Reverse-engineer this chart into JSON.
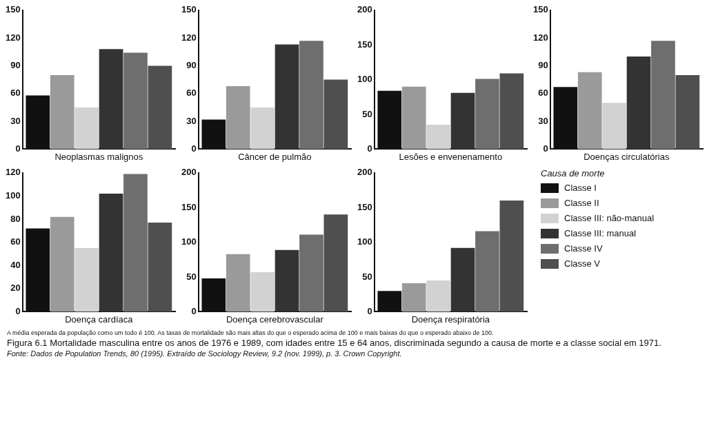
{
  "chart_data": [
    {
      "type": "bar",
      "categories": [
        null
      ],
      "xlabel": "Neoplasmas malignos",
      "ylim": [
        0,
        150
      ],
      "yticks": [
        0,
        30,
        60,
        90,
        120,
        150
      ],
      "tick_labels": "y",
      "grid": false,
      "legend": false,
      "series": [
        {
          "color": "#111111",
          "values": [
            58
          ]
        },
        {
          "color": "#9a9a9a",
          "values": [
            80
          ]
        },
        {
          "color": "#d2d2d2",
          "values": [
            45
          ]
        },
        {
          "color": "#333333",
          "values": [
            108
          ]
        },
        {
          "color": "#6e6e6e",
          "values": [
            104
          ]
        },
        {
          "color": "#4f4f4f",
          "values": [
            90
          ]
        }
      ]
    },
    {
      "type": "bar",
      "categories": [
        null
      ],
      "xlabel": "Câncer de pulmão",
      "ylim": [
        0,
        150
      ],
      "yticks": [
        0,
        30,
        60,
        90,
        120,
        150
      ],
      "tick_labels": "y",
      "grid": false,
      "legend": false,
      "series": [
        {
          "color": "#111111",
          "values": [
            32
          ]
        },
        {
          "color": "#9a9a9a",
          "values": [
            68
          ]
        },
        {
          "color": "#d2d2d2",
          "values": [
            45
          ]
        },
        {
          "color": "#333333",
          "values": [
            113
          ]
        },
        {
          "color": "#6e6e6e",
          "values": [
            117
          ]
        },
        {
          "color": "#4f4f4f",
          "values": [
            75
          ]
        }
      ]
    },
    {
      "type": "bar",
      "categories": [
        null
      ],
      "xlabel": "Lesões e envenenamento",
      "ylim": [
        0,
        200
      ],
      "yticks": [
        0,
        50,
        100,
        150,
        200
      ],
      "tick_labels": "y",
      "grid": false,
      "legend": false,
      "series": [
        {
          "color": "#111111",
          "values": [
            84
          ]
        },
        {
          "color": "#9a9a9a",
          "values": [
            90
          ]
        },
        {
          "color": "#d2d2d2",
          "values": [
            35
          ]
        },
        {
          "color": "#333333",
          "values": [
            81
          ]
        },
        {
          "color": "#6e6e6e",
          "values": [
            101
          ]
        },
        {
          "color": "#4f4f4f",
          "values": [
            109
          ]
        }
      ]
    },
    {
      "type": "bar",
      "categories": [
        null
      ],
      "xlabel": "Doenças circulatórias",
      "ylim": [
        0,
        150
      ],
      "yticks": [
        0,
        30,
        60,
        90,
        120,
        150
      ],
      "tick_labels": "y",
      "grid": false,
      "legend": false,
      "series": [
        {
          "color": "#111111",
          "values": [
            67
          ]
        },
        {
          "color": "#9a9a9a",
          "values": [
            83
          ]
        },
        {
          "color": "#d2d2d2",
          "values": [
            50
          ]
        },
        {
          "color": "#333333",
          "values": [
            100
          ]
        },
        {
          "color": "#6e6e6e",
          "values": [
            117
          ]
        },
        {
          "color": "#4f4f4f",
          "values": [
            80
          ]
        }
      ]
    },
    {
      "type": "bar",
      "categories": [
        null
      ],
      "xlabel": "Doença cardíaca",
      "ylim": [
        0,
        120
      ],
      "yticks": [
        0,
        20,
        40,
        60,
        80,
        100,
        120
      ],
      "tick_labels": "y",
      "grid": false,
      "legend": false,
      "series": [
        {
          "color": "#111111",
          "values": [
            72
          ]
        },
        {
          "color": "#9a9a9a",
          "values": [
            82
          ]
        },
        {
          "color": "#d2d2d2",
          "values": [
            55
          ]
        },
        {
          "color": "#333333",
          "values": [
            102
          ]
        },
        {
          "color": "#6e6e6e",
          "values": [
            119
          ]
        },
        {
          "color": "#4f4f4f",
          "values": [
            77
          ]
        }
      ]
    },
    {
      "type": "bar",
      "categories": [
        null
      ],
      "xlabel": "Doença cerebrovascular",
      "ylim": [
        0,
        200
      ],
      "yticks": [
        0,
        50,
        100,
        150,
        200
      ],
      "tick_labels": "y",
      "grid": false,
      "legend": false,
      "series": [
        {
          "color": "#111111",
          "values": [
            48
          ]
        },
        {
          "color": "#9a9a9a",
          "values": [
            83
          ]
        },
        {
          "color": "#d2d2d2",
          "values": [
            57
          ]
        },
        {
          "color": "#333333",
          "values": [
            89
          ]
        },
        {
          "color": "#6e6e6e",
          "values": [
            111
          ]
        },
        {
          "color": "#4f4f4f",
          "values": [
            140
          ]
        }
      ]
    },
    {
      "type": "bar",
      "categories": [
        null
      ],
      "xlabel": "Doença respiratória",
      "ylim": [
        0,
        200
      ],
      "yticks": [
        0,
        50,
        100,
        150,
        200
      ],
      "tick_labels": "y",
      "grid": false,
      "legend": "right",
      "legend_title": "Causa de morte",
      "series": [
        {
          "name": "Classe I",
          "color": "#111111",
          "values": [
            30
          ]
        },
        {
          "name": "Classe II",
          "color": "#9a9a9a",
          "values": [
            41
          ]
        },
        {
          "name": "Classe III: não-manual",
          "color": "#d2d2d2",
          "values": [
            45
          ]
        },
        {
          "name": "Classe III: manual",
          "color": "#333333",
          "values": [
            92
          ]
        },
        {
          "name": "Classe IV",
          "color": "#6e6e6e",
          "values": [
            116
          ]
        },
        {
          "name": "Classe V",
          "color": "#4f4f4f",
          "values": [
            160
          ]
        }
      ],
      "annotations": [
        "A média esperada da população como um todo é 100. As taxas de mortalidade são mais altas do que o esperado acima de 100 e mais baixas do que o esperado abaixo de 100.",
        "Figura 6.1    Mortalidade masculina entre os anos de 1976 e 1989, com idades entre 15 e 64 anos, discriminada segundo a causa de morte e a classe social em 1971.",
        "Fonte: Dados de Population Trends, 80 (1995). Extraído de Sociology Review, 9.2 (nov. 1999), p. 3. Crown Copyright."
      ]
    }
  ]
}
